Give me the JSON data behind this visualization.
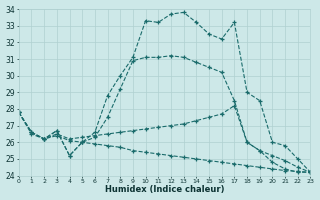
{
  "xlabel": "Humidex (Indice chaleur)",
  "xlim": [
    0,
    23
  ],
  "ylim": [
    24,
    34
  ],
  "yticks": [
    24,
    25,
    26,
    27,
    28,
    29,
    30,
    31,
    32,
    33,
    34
  ],
  "xticks": [
    0,
    1,
    2,
    3,
    4,
    5,
    6,
    7,
    8,
    9,
    10,
    11,
    12,
    13,
    14,
    15,
    16,
    17,
    18,
    19,
    20,
    21,
    22,
    23
  ],
  "bg_color": "#cde8e8",
  "grid_color": "#b0d0d0",
  "line_color": "#1a6b6b",
  "curve1_x": [
    0,
    1,
    2,
    3,
    4,
    5,
    6,
    7,
    8,
    9,
    10,
    11,
    12,
    13,
    14,
    15,
    16,
    17,
    18,
    19,
    20,
    21,
    22,
    23
  ],
  "curve1_y": [
    27.8,
    26.6,
    26.2,
    26.7,
    25.2,
    26.0,
    26.6,
    28.8,
    30.0,
    31.1,
    33.3,
    33.2,
    33.7,
    33.8,
    33.2,
    32.5,
    32.2,
    33.2,
    29.0,
    28.5,
    26.0,
    25.8,
    25.0,
    24.2
  ],
  "curve2_x": [
    0,
    1,
    2,
    3,
    4,
    5,
    6,
    7,
    8,
    9,
    10,
    11,
    12,
    13,
    14,
    15,
    16,
    17,
    18,
    19,
    20,
    21,
    22,
    23
  ],
  "curve2_y": [
    27.8,
    26.6,
    26.2,
    26.7,
    25.2,
    26.0,
    26.3,
    27.5,
    29.2,
    30.9,
    31.1,
    31.1,
    31.2,
    31.1,
    30.8,
    30.5,
    30.2,
    28.5,
    26.0,
    25.5,
    24.8,
    24.4,
    24.2,
    24.2
  ],
  "curve3_x": [
    0,
    1,
    2,
    3,
    4,
    5,
    6,
    7,
    8,
    9,
    10,
    11,
    12,
    13,
    14,
    15,
    16,
    17,
    18,
    19,
    20,
    21,
    22,
    23
  ],
  "curve3_y": [
    27.8,
    26.6,
    26.2,
    26.5,
    26.2,
    26.3,
    26.4,
    26.5,
    26.6,
    26.7,
    26.8,
    26.9,
    27.0,
    27.1,
    27.3,
    27.5,
    27.7,
    28.2,
    26.0,
    25.5,
    25.2,
    24.9,
    24.5,
    24.2
  ],
  "curve4_x": [
    0,
    1,
    2,
    3,
    4,
    5,
    6,
    7,
    8,
    9,
    10,
    11,
    12,
    13,
    14,
    15,
    16,
    17,
    18,
    19,
    20,
    21,
    22,
    23
  ],
  "curve4_y": [
    27.8,
    26.5,
    26.2,
    26.4,
    26.1,
    26.0,
    25.9,
    25.8,
    25.7,
    25.5,
    25.4,
    25.3,
    25.2,
    25.1,
    25.0,
    24.9,
    24.8,
    24.7,
    24.6,
    24.5,
    24.4,
    24.3,
    24.25,
    24.2
  ]
}
